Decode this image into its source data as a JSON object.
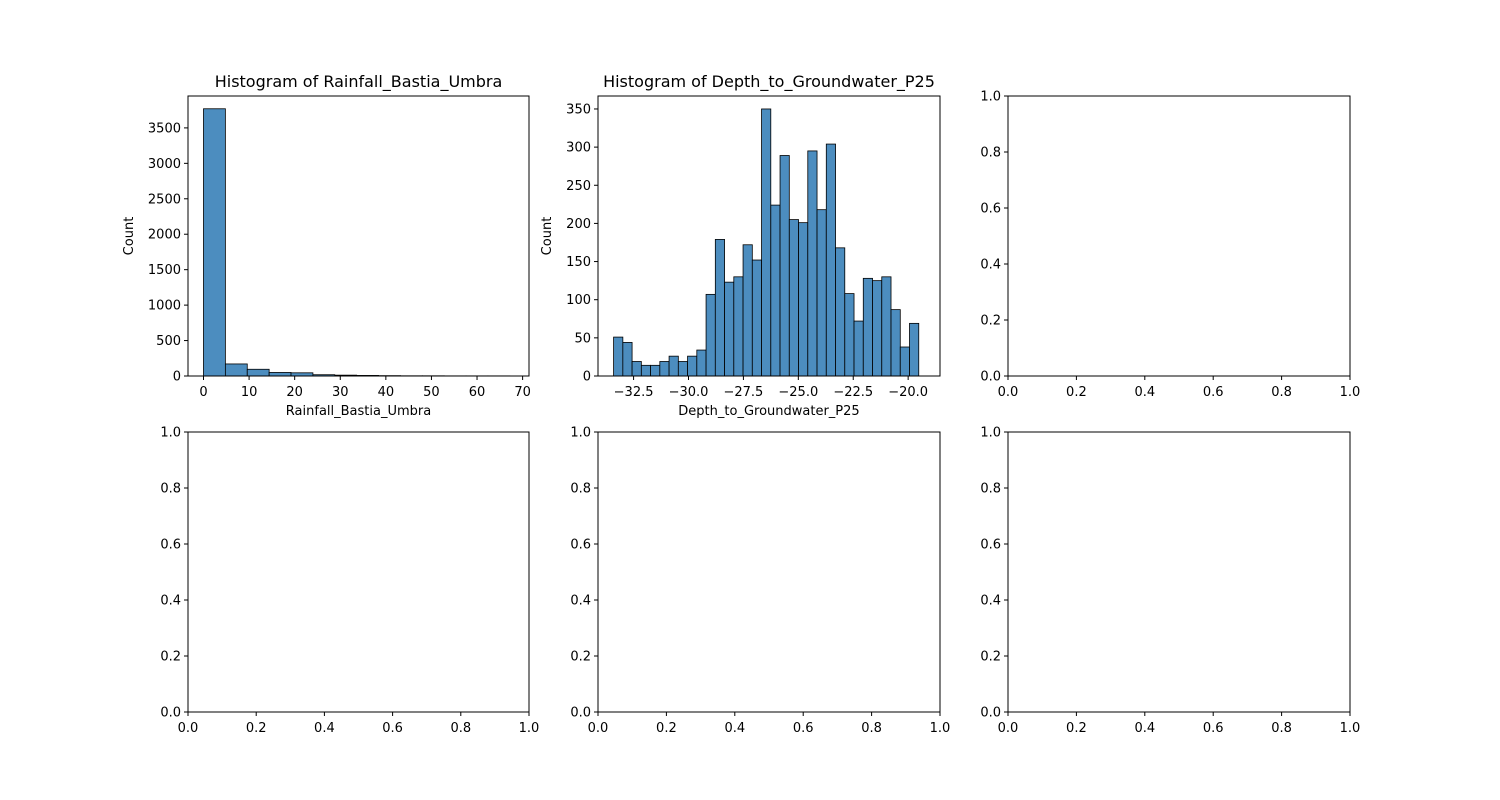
{
  "chart_data": [
    {
      "type": "bar",
      "title": "Histogram of Rainfall_Bastia_Umbra",
      "xlabel": "Rainfall_Bastia_Umbra",
      "ylabel": "Count",
      "xlim": [
        -3.4,
        71.4
      ],
      "ylim": [
        0,
        3950
      ],
      "xticks": [
        0,
        10,
        20,
        30,
        40,
        50,
        60,
        70
      ],
      "xtick_labels": [
        "0",
        "10",
        "20",
        "30",
        "40",
        "50",
        "60",
        "70"
      ],
      "yticks": [
        0,
        500,
        1000,
        1500,
        2000,
        2500,
        3000,
        3500
      ],
      "ytick_labels": [
        "0",
        "500",
        "1000",
        "1500",
        "2000",
        "2500",
        "3000",
        "3500"
      ],
      "bin_edges": [
        0,
        4.8,
        9.6,
        14.4,
        19.2,
        24.0,
        28.8,
        33.6,
        38.4,
        43.2,
        48.0,
        52.8,
        57.6,
        62.4,
        67.2
      ],
      "values": [
        3770,
        170,
        95,
        50,
        45,
        18,
        12,
        8,
        5,
        3,
        3,
        2,
        2,
        2
      ],
      "bar_color": "#4c8dbf",
      "grid": false
    },
    {
      "type": "bar",
      "title": "Histogram of Depth_to_Groundwater_P25",
      "xlabel": "Depth_to_Groundwater_P25",
      "ylabel": "Count",
      "xlim": [
        -34.12,
        -18.55
      ],
      "ylim": [
        0,
        367
      ],
      "xticks": [
        -32.5,
        -30.0,
        -27.5,
        -25.0,
        -22.5,
        -20.0
      ],
      "xtick_labels": [
        "−32.5",
        "−30.0",
        "−27.5",
        "−25.0",
        "−22.5",
        "−20.0"
      ],
      "yticks": [
        0,
        50,
        100,
        150,
        200,
        250,
        300,
        350
      ],
      "ytick_labels": [
        "0",
        "50",
        "100",
        "150",
        "200",
        "250",
        "300",
        "350"
      ],
      "bin_start": -33.41,
      "bin_width": 0.421,
      "values": [
        51,
        44,
        19,
        14,
        14,
        19,
        26,
        19,
        26,
        34,
        107,
        179,
        123,
        130,
        172,
        152,
        350,
        224,
        289,
        205,
        201,
        295,
        218,
        304,
        168,
        108,
        72,
        128,
        125,
        130,
        87,
        38,
        69
      ],
      "bar_color": "#4c8dbf",
      "grid": false
    },
    {
      "type": "empty",
      "xlim": [
        0,
        1
      ],
      "ylim": [
        0,
        1
      ],
      "xticks": [
        0,
        0.2,
        0.4,
        0.6,
        0.8,
        1.0
      ],
      "xtick_labels": [
        "0.0",
        "0.2",
        "0.4",
        "0.6",
        "0.8",
        "1.0"
      ],
      "yticks": [
        0,
        0.2,
        0.4,
        0.6,
        0.8,
        1.0
      ],
      "ytick_labels": [
        "0.0",
        "0.2",
        "0.4",
        "0.6",
        "0.8",
        "1.0"
      ]
    },
    {
      "type": "empty",
      "xlim": [
        0,
        1
      ],
      "ylim": [
        0,
        1
      ],
      "xticks": [
        0,
        0.2,
        0.4,
        0.6,
        0.8,
        1.0
      ],
      "xtick_labels": [
        "0.0",
        "0.2",
        "0.4",
        "0.6",
        "0.8",
        "1.0"
      ],
      "yticks": [
        0,
        0.2,
        0.4,
        0.6,
        0.8,
        1.0
      ],
      "ytick_labels": [
        "0.0",
        "0.2",
        "0.4",
        "0.6",
        "0.8",
        "1.0"
      ]
    },
    {
      "type": "empty",
      "xlim": [
        0,
        1
      ],
      "ylim": [
        0,
        1
      ],
      "xticks": [
        0,
        0.2,
        0.4,
        0.6,
        0.8,
        1.0
      ],
      "xtick_labels": [
        "0.0",
        "0.2",
        "0.4",
        "0.6",
        "0.8",
        "1.0"
      ],
      "yticks": [
        0,
        0.2,
        0.4,
        0.6,
        0.8,
        1.0
      ],
      "ytick_labels": [
        "0.0",
        "0.2",
        "0.4",
        "0.6",
        "0.8",
        "1.0"
      ]
    },
    {
      "type": "empty",
      "xlim": [
        0,
        1
      ],
      "ylim": [
        0,
        1
      ],
      "xticks": [
        0,
        0.2,
        0.4,
        0.6,
        0.8,
        1.0
      ],
      "xtick_labels": [
        "0.0",
        "0.2",
        "0.4",
        "0.6",
        "0.8",
        "1.0"
      ],
      "yticks": [
        0,
        0.2,
        0.4,
        0.6,
        0.8,
        1.0
      ],
      "ytick_labels": [
        "0.0",
        "0.2",
        "0.4",
        "0.6",
        "0.8",
        "1.0"
      ]
    }
  ]
}
